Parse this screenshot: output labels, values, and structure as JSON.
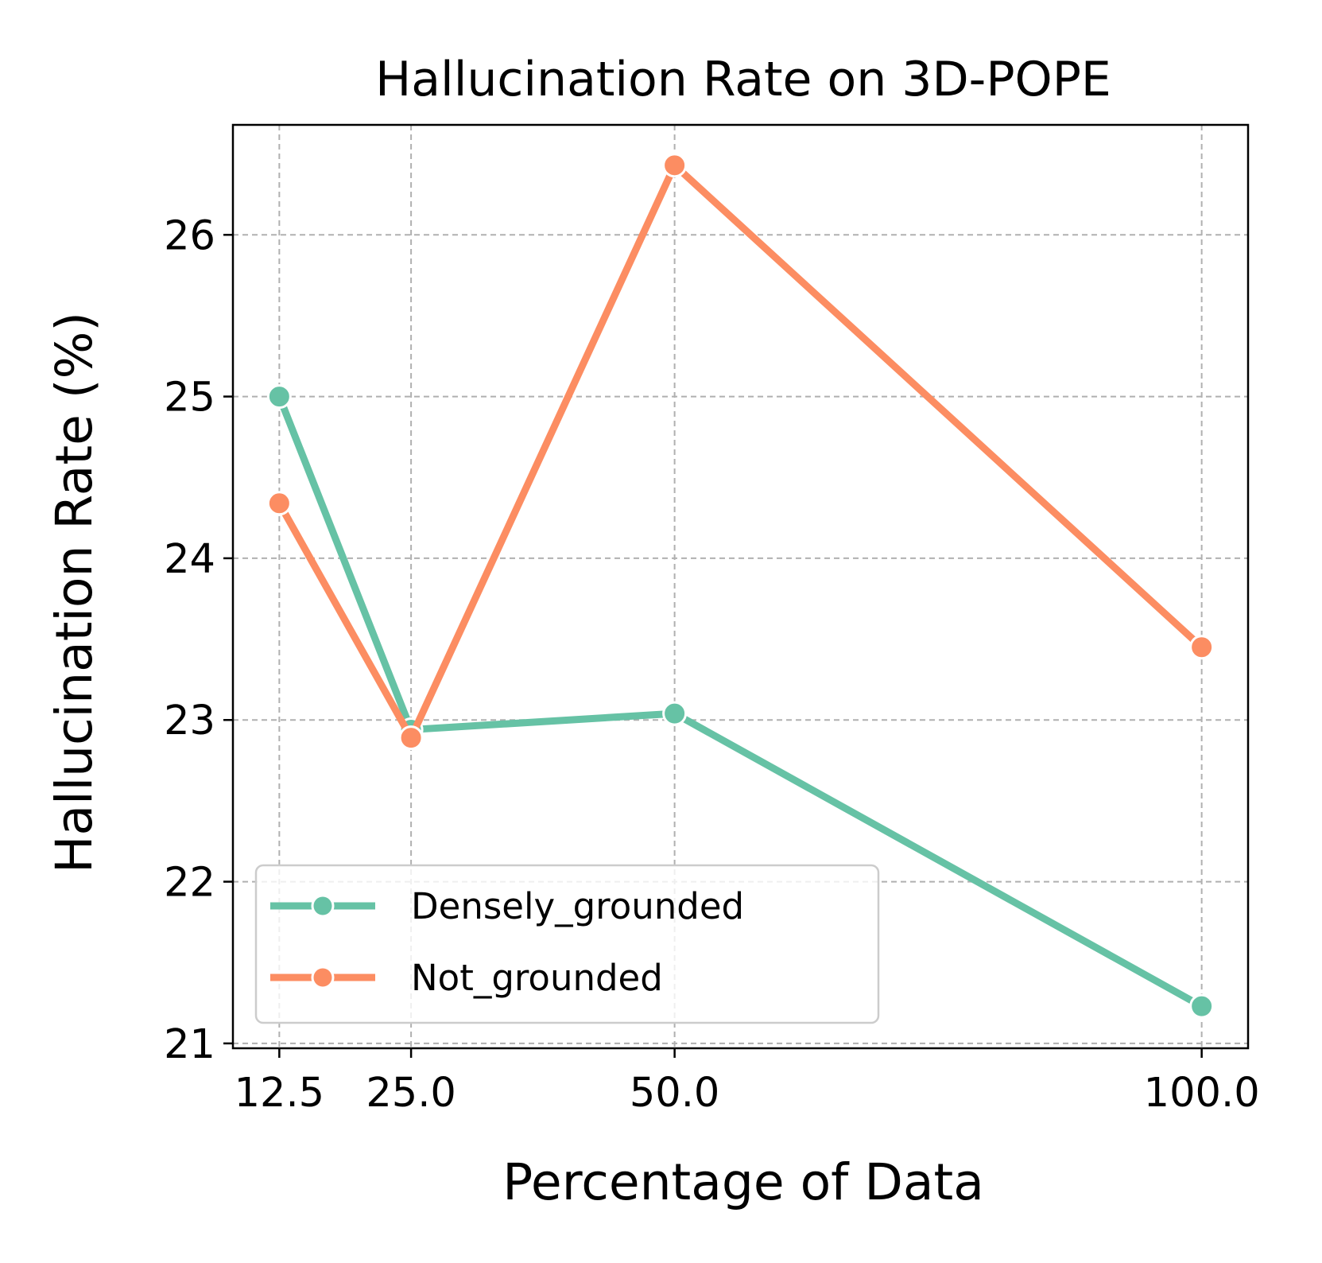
{
  "chart_data": {
    "type": "line",
    "title": "Hallucination Rate on 3D-POPE",
    "xlabel": "Percentage of Data",
    "ylabel": "Hallucination Rate (%)",
    "x": [
      12.5,
      25.0,
      50.0,
      100.0
    ],
    "x_tick_labels": [
      "12.5",
      "25.0",
      "50.0",
      "100.0"
    ],
    "xlim": [
      8.1,
      104.4
    ],
    "ylim": [
      20.97,
      26.68
    ],
    "y_ticks": [
      21,
      22,
      23,
      24,
      25,
      26
    ],
    "y_tick_labels": [
      "21",
      "22",
      "23",
      "24",
      "25",
      "26"
    ],
    "grid": true,
    "legend_position": "lower-left",
    "series": [
      {
        "name": "Densely_grounded",
        "color": "#66c2a5",
        "marker": "circle",
        "values": [
          25.0,
          22.94,
          23.04,
          21.23
        ]
      },
      {
        "name": "Not_grounded",
        "color": "#fc8d62",
        "marker": "circle",
        "values": [
          24.34,
          22.89,
          26.43,
          23.45
        ]
      }
    ]
  }
}
